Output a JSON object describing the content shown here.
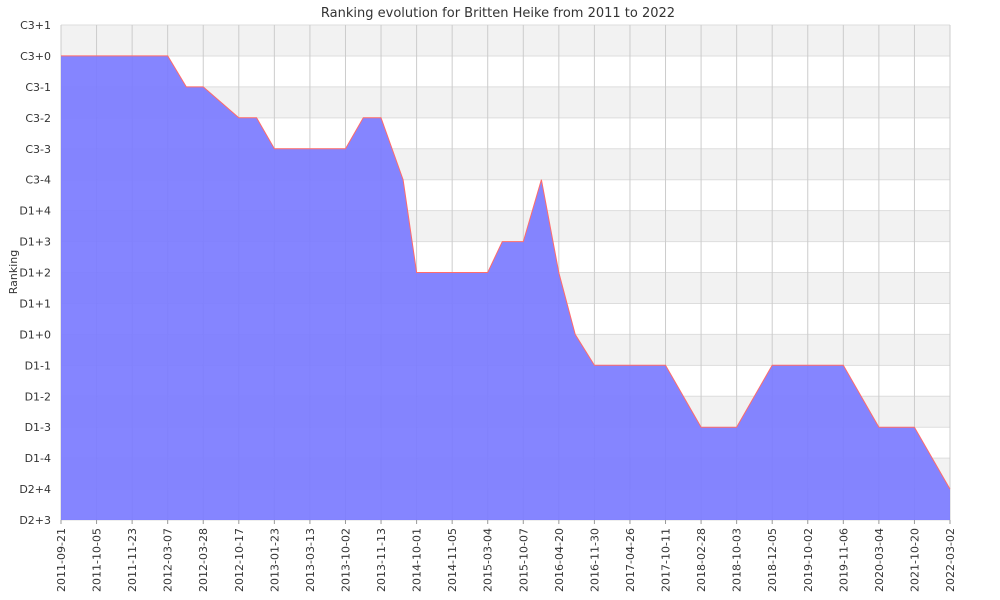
{
  "chart_data": {
    "type": "area",
    "title": "Ranking evolution for Britten Heike from 2011 to 2022",
    "xlabel": "",
    "ylabel": "Ranking",
    "y_categories": [
      "D2+3",
      "D2+4",
      "D1-4",
      "D1-3",
      "D1-2",
      "D1-1",
      "D1+0",
      "D1+1",
      "D1+2",
      "D1+3",
      "D1+4",
      "C3-4",
      "C3-3",
      "C3-2",
      "C3-1",
      "C3+0",
      "C3+1"
    ],
    "x_ticks": [
      "2011-09-21",
      "2011-10-05",
      "2011-11-23",
      "2012-03-07",
      "2012-03-28",
      "2012-10-17",
      "2013-01-23",
      "2013-03-13",
      "2013-10-02",
      "2013-11-13",
      "2014-10-01",
      "2014-11-05",
      "2015-03-04",
      "2015-10-07",
      "2016-04-20",
      "2016-11-30",
      "2017-04-26",
      "2017-10-11",
      "2018-02-28",
      "2018-10-03",
      "2018-12-05",
      "2019-10-02",
      "2019-11-06",
      "2020-03-04",
      "2021-10-20",
      "2022-03-02"
    ],
    "series": [
      {
        "points": [
          {
            "x": "2011-09-21",
            "y": "C3+0"
          },
          {
            "x": "2012-03-07",
            "y": "C3+0"
          },
          {
            "x": "2012-03-18",
            "y": "C3-1"
          },
          {
            "x": "2012-03-28",
            "y": "C3-1"
          },
          {
            "x": "2012-10-17",
            "y": "C3-2"
          },
          {
            "x": "2012-12-05",
            "y": "C3-2"
          },
          {
            "x": "2013-01-23",
            "y": "C3-3"
          },
          {
            "x": "2013-10-02",
            "y": "C3-3"
          },
          {
            "x": "2013-10-23",
            "y": "C3-2"
          },
          {
            "x": "2013-11-13",
            "y": "C3-2"
          },
          {
            "x": "2014-06-01",
            "y": "C3-4"
          },
          {
            "x": "2014-10-01",
            "y": "D1+2"
          },
          {
            "x": "2015-03-04",
            "y": "D1+2"
          },
          {
            "x": "2015-06-01",
            "y": "D1+3"
          },
          {
            "x": "2015-10-07",
            "y": "D1+3"
          },
          {
            "x": "2016-01-15",
            "y": "C3-4"
          },
          {
            "x": "2016-04-20",
            "y": "D1+2"
          },
          {
            "x": "2016-08-01",
            "y": "D1+0"
          },
          {
            "x": "2016-11-30",
            "y": "D1-1"
          },
          {
            "x": "2017-10-11",
            "y": "D1-1"
          },
          {
            "x": "2018-02-28",
            "y": "D1-3"
          },
          {
            "x": "2018-10-03",
            "y": "D1-3"
          },
          {
            "x": "2018-12-05",
            "y": "D1-1"
          },
          {
            "x": "2019-11-06",
            "y": "D1-1"
          },
          {
            "x": "2020-03-04",
            "y": "D1-3"
          },
          {
            "x": "2021-10-20",
            "y": "D1-3"
          },
          {
            "x": "2022-03-02",
            "y": "D2+4"
          }
        ]
      }
    ],
    "grid": true,
    "legend": "none",
    "colors": {
      "fill": "#7b7bff",
      "line": "#ff6b6b",
      "band_alt": "#f2f2f2",
      "grid": "#cccccc"
    }
  }
}
